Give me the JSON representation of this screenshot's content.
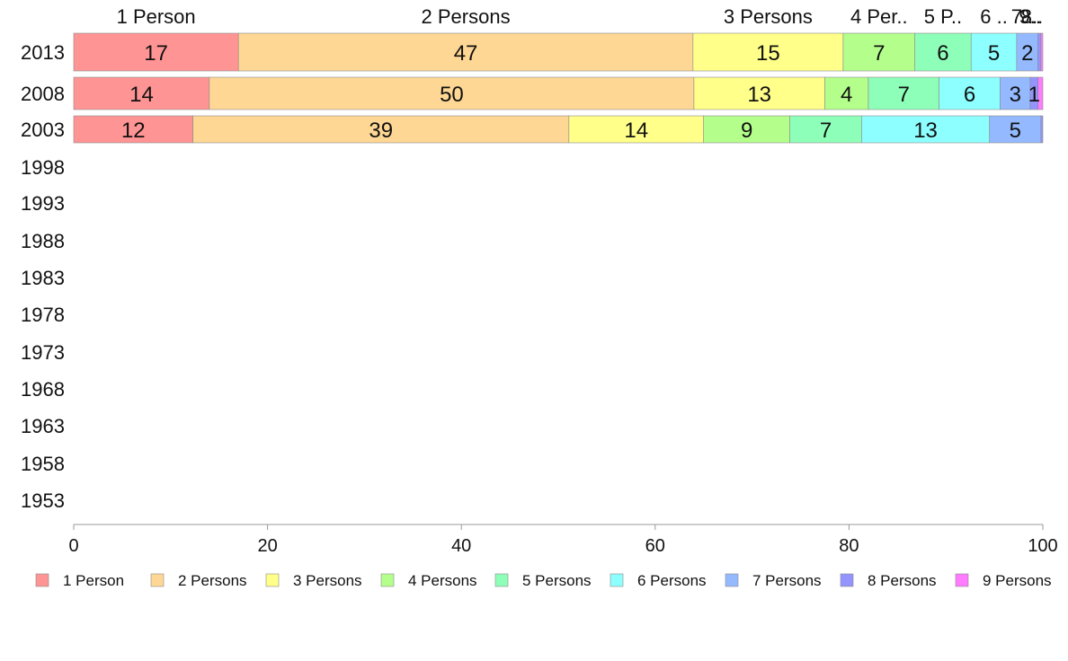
{
  "chart_data": {
    "type": "bar",
    "orientation": "horizontal",
    "stacked": true,
    "categories": [
      "2013",
      "2008",
      "2003",
      "1998",
      "1993",
      "1988",
      "1983",
      "1978",
      "1973",
      "1968",
      "1963",
      "1958",
      "1953"
    ],
    "series": [
      {
        "name": "1 Person",
        "color": "#ff9494",
        "values": [
          17,
          14,
          12.3,
          null,
          null,
          null,
          null,
          null,
          null,
          null,
          null,
          null,
          null
        ]
      },
      {
        "name": "2 Persons",
        "color": "#ffd794",
        "values": [
          46.9,
          50,
          38.8,
          null,
          null,
          null,
          null,
          null,
          null,
          null,
          null,
          null,
          null
        ]
      },
      {
        "name": "3 Persons",
        "color": "#ffff8a",
        "values": [
          15.5,
          13.5,
          13.9,
          null,
          null,
          null,
          null,
          null,
          null,
          null,
          null,
          null,
          null
        ]
      },
      {
        "name": "4 Persons",
        "color": "#b4ff8c",
        "values": [
          7.4,
          4.5,
          8.9,
          null,
          null,
          null,
          null,
          null,
          null,
          null,
          null,
          null,
          null
        ]
      },
      {
        "name": "5 Persons",
        "color": "#8effb8",
        "values": [
          5.8,
          7.3,
          7.4,
          null,
          null,
          null,
          null,
          null,
          null,
          null,
          null,
          null,
          null
        ]
      },
      {
        "name": "6 Persons",
        "color": "#8effff",
        "values": [
          4.7,
          6.3,
          13.2,
          null,
          null,
          null,
          null,
          null,
          null,
          null,
          null,
          null,
          null
        ]
      },
      {
        "name": "7 Persons",
        "color": "#94b9ff",
        "values": [
          2.2,
          3.1,
          5.3,
          null,
          null,
          null,
          null,
          null,
          null,
          null,
          null,
          null,
          null
        ]
      },
      {
        "name": "8 Persons",
        "color": "#9494ff",
        "values": [
          0.3,
          0.8,
          0.2,
          null,
          null,
          null,
          null,
          null,
          null,
          null,
          null,
          null,
          null
        ]
      },
      {
        "name": "9 Persons",
        "color": "#ff7cff",
        "values": [
          0.2,
          0.5,
          0.0,
          null,
          null,
          null,
          null,
          null,
          null,
          null,
          null,
          null,
          null
        ]
      }
    ],
    "data_labels": [
      [
        "17",
        "47",
        "15",
        "7",
        "6",
        "5",
        "2",
        "",
        ""
      ],
      [
        "14",
        "50",
        "13",
        "4",
        "7",
        "6",
        "3",
        "1",
        ""
      ],
      [
        "12",
        "39",
        "14",
        "9",
        "7",
        "13",
        "5",
        "",
        ""
      ]
    ],
    "top_labels": [
      "1 Person",
      "2 Persons",
      "3 Persons",
      "4 Per..",
      "5 P..",
      "6 ..",
      "7..",
      "8..",
      "9.."
    ],
    "xlim": [
      0,
      100
    ],
    "xticks": [
      "0",
      "20",
      "40",
      "60",
      "80",
      "100"
    ],
    "xlabel": "",
    "ylabel": "",
    "grid": false,
    "legend": "bottom"
  }
}
